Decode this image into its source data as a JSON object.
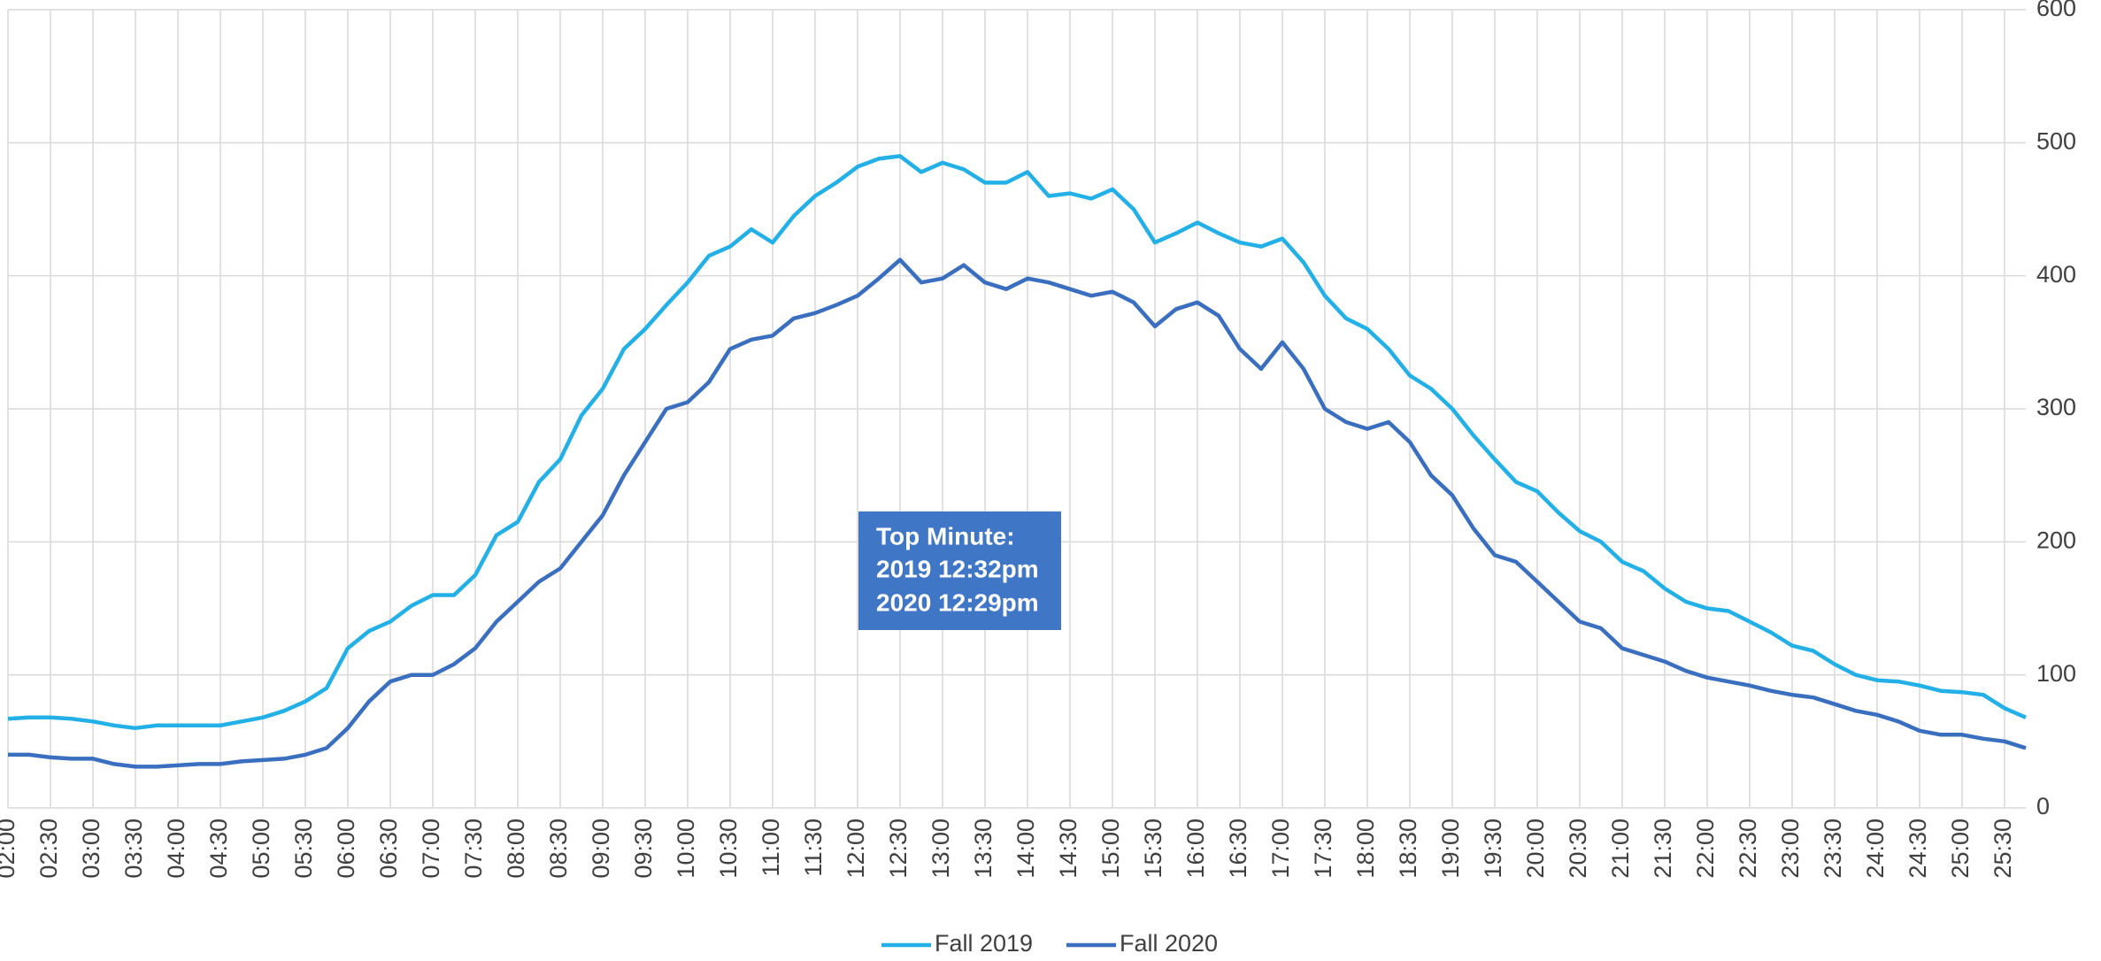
{
  "chart_data": {
    "type": "line",
    "annotation": [
      "Top Minute:",
      "2019 12:32pm",
      "2020 12:29pm"
    ],
    "categories": [
      "02:00",
      null,
      "02:30",
      null,
      "03:00",
      null,
      "03:30",
      null,
      "04:00",
      null,
      "04:30",
      null,
      "05:00",
      null,
      "05:30",
      null,
      "06:00",
      null,
      "06:30",
      null,
      "07:00",
      null,
      "07:30",
      null,
      "08:00",
      null,
      "08:30",
      null,
      "09:00",
      null,
      "09:30",
      null,
      "10:00",
      null,
      "10:30",
      null,
      "11:00",
      null,
      "11:30",
      null,
      "12:00",
      null,
      "12:30",
      null,
      "13:00",
      null,
      "13:30",
      null,
      "14:00",
      null,
      "14:30",
      null,
      "15:00",
      null,
      "15:30",
      null,
      "16:00",
      null,
      "16:30",
      null,
      "17:00",
      null,
      "17:30",
      null,
      "18:00",
      null,
      "18:30",
      null,
      "19:00",
      null,
      "19:30",
      null,
      "20:00",
      null,
      "20:30",
      null,
      "21:00",
      null,
      "21:30",
      null,
      "22:00",
      null,
      "22:30",
      null,
      "23:00",
      null,
      "23:30",
      null,
      "24:00",
      null,
      "24:30",
      null,
      "25:00",
      null,
      "25:30",
      null
    ],
    "series": [
      {
        "name": "Fall 2019",
        "color": "#22b0e6",
        "values": [
          67,
          68,
          68,
          67,
          65,
          62,
          60,
          62,
          62,
          62,
          62,
          65,
          68,
          73,
          80,
          90,
          120,
          133,
          140,
          152,
          160,
          160,
          175,
          205,
          215,
          245,
          262,
          295,
          315,
          345,
          360,
          378,
          395,
          415,
          422,
          435,
          425,
          445,
          460,
          470,
          482,
          488,
          490,
          478,
          485,
          480,
          470,
          470,
          478,
          460,
          462,
          458,
          465,
          450,
          425,
          432,
          440,
          432,
          425,
          422,
          428,
          410,
          385,
          368,
          360,
          345,
          325,
          315,
          300,
          280,
          262,
          245,
          238,
          222,
          208,
          200,
          185,
          178,
          165,
          155,
          150,
          148,
          140,
          132,
          122,
          118,
          108,
          100,
          96,
          95,
          92,
          88,
          87,
          85,
          75,
          68
        ]
      },
      {
        "name": "Fall 2020",
        "color": "#3a6fbf",
        "values": [
          40,
          40,
          38,
          37,
          37,
          33,
          31,
          31,
          32,
          33,
          33,
          35,
          36,
          37,
          40,
          45,
          60,
          80,
          95,
          100,
          100,
          108,
          120,
          140,
          155,
          170,
          180,
          200,
          220,
          250,
          275,
          300,
          305,
          320,
          345,
          352,
          355,
          368,
          372,
          378,
          385,
          398,
          412,
          395,
          398,
          408,
          395,
          390,
          398,
          395,
          390,
          385,
          388,
          380,
          362,
          375,
          380,
          370,
          345,
          330,
          350,
          330,
          300,
          290,
          285,
          290,
          275,
          250,
          235,
          210,
          190,
          185,
          170,
          155,
          140,
          135,
          120,
          115,
          110,
          103,
          98,
          95,
          92,
          88,
          85,
          83,
          78,
          73,
          70,
          65,
          58,
          55,
          55,
          52,
          50,
          45
        ]
      }
    ],
    "ylim": [
      0,
      600
    ],
    "yticks": [
      0,
      100,
      200,
      300,
      400,
      500,
      600
    ],
    "grid": true,
    "legend": "bottom"
  }
}
